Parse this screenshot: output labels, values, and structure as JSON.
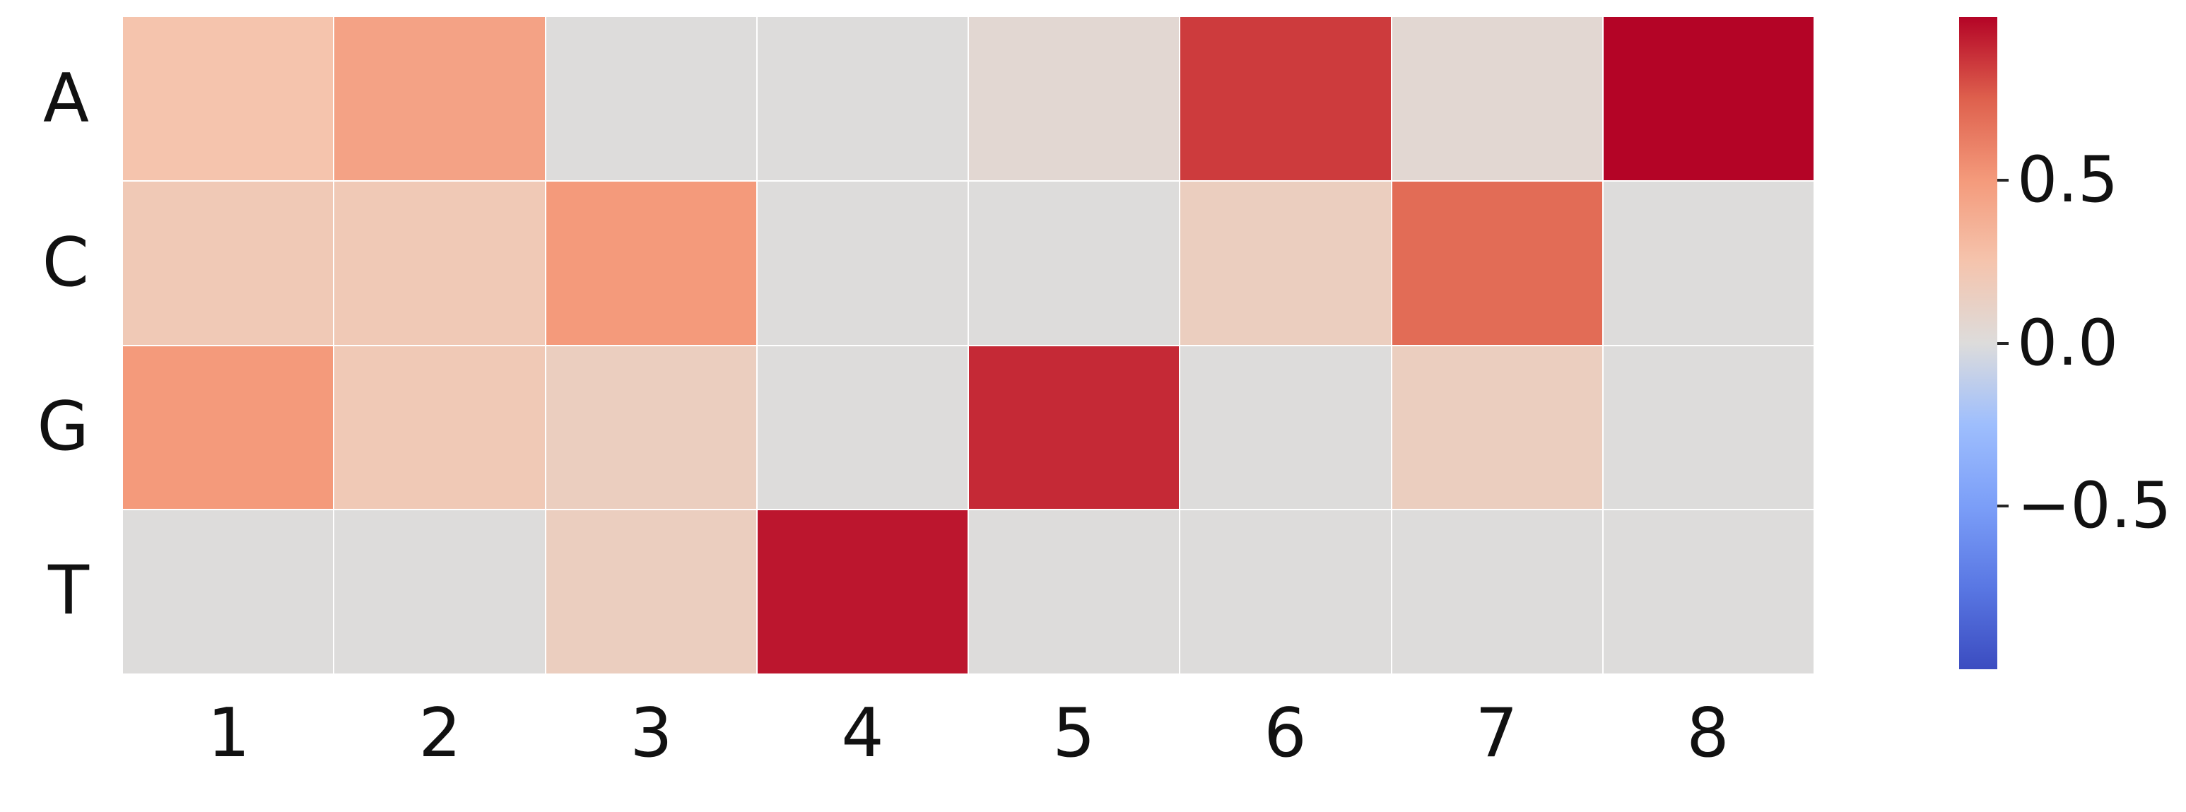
{
  "chart_data": {
    "type": "heatmap",
    "title": "",
    "rows": [
      "A",
      "C",
      "G",
      "T"
    ],
    "columns": [
      "1",
      "2",
      "3",
      "4",
      "5",
      "6",
      "7",
      "8"
    ],
    "values": [
      [
        0.25,
        0.45,
        0.0,
        0.0,
        0.05,
        0.85,
        0.05,
        1.0
      ],
      [
        0.2,
        0.2,
        0.5,
        0.0,
        0.0,
        0.15,
        0.7,
        0.0
      ],
      [
        0.5,
        0.2,
        0.15,
        0.0,
        0.9,
        0.0,
        0.15,
        0.0
      ],
      [
        0.0,
        0.0,
        0.15,
        0.95,
        0.0,
        0.0,
        0.0,
        0.0
      ]
    ],
    "colormap": "coolwarm",
    "vmin": -1.0,
    "vmax": 1.0,
    "grid": false,
    "cell_gap_color": "#ffffff",
    "colorbar": {
      "position": "right",
      "ticks": [
        {
          "label": "0.5",
          "value": 0.5
        },
        {
          "label": "0.0",
          "value": 0.0
        },
        {
          "label": "−0.5",
          "value": -0.5
        }
      ]
    },
    "colors": {
      "min_color": "#3b4cc0",
      "mid_color": "#dddcdc",
      "max_color": "#b40426",
      "text_color": "#111111",
      "tick_color": "#262626",
      "background": "#ffffff"
    }
  }
}
